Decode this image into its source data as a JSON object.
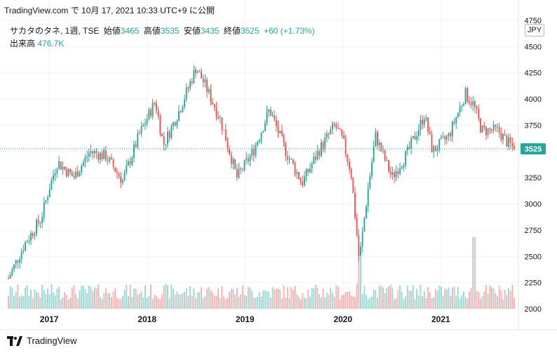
{
  "header": {
    "caption": "TradingView.com で 10月 17, 2021 10:33 UTC+9 に公開"
  },
  "legend": {
    "symbol": "サカタのタネ, 1週, TSE",
    "open_label": "始値",
    "open": "3465",
    "high_label": "高値",
    "high": "3535",
    "low_label": "安値",
    "low": "3435",
    "close_label": "終値",
    "close": "3525",
    "change": "+60 (+1.73%)",
    "volume_label": "出来高",
    "volume": "476.7K"
  },
  "currency": "JPY",
  "footer": {
    "brand": "TradingView"
  },
  "colors": {
    "up": "#26a69a",
    "down": "#ef5350",
    "grid": "#f0f3fa",
    "last_line": "#26a69a"
  },
  "chart_data": {
    "type": "candlestick",
    "interval": "1 week",
    "ylim": [
      1950,
      4750
    ],
    "y_ticks": [
      2000,
      2250,
      2500,
      2750,
      3000,
      3250,
      3500,
      3750,
      4000,
      4250,
      4500,
      4750
    ],
    "x_ticks": [
      "2017",
      "2018",
      "2019",
      "2020",
      "2021"
    ],
    "last_price": "3525",
    "grid": true,
    "anchors": [
      [
        "2016-08",
        2290
      ],
      [
        "2016-10",
        2620
      ],
      [
        "2016-12",
        2860
      ],
      [
        "2017-01",
        3150
      ],
      [
        "2017-02",
        3400
      ],
      [
        "2017-04",
        3250
      ],
      [
        "2017-06",
        3500
      ],
      [
        "2017-08",
        3450
      ],
      [
        "2017-10",
        3220
      ],
      [
        "2017-12",
        3650
      ],
      [
        "2018-02",
        3980
      ],
      [
        "2018-03",
        3560
      ],
      [
        "2018-05",
        3900
      ],
      [
        "2018-07",
        4300
      ],
      [
        "2018-08",
        4150
      ],
      [
        "2018-10",
        3800
      ],
      [
        "2018-12",
        3250
      ],
      [
        "2019-02",
        3500
      ],
      [
        "2019-04",
        3900
      ],
      [
        "2019-06",
        3500
      ],
      [
        "2019-08",
        3200
      ],
      [
        "2019-10",
        3500
      ],
      [
        "2019-12",
        3750
      ],
      [
        "2020-01",
        3600
      ],
      [
        "2020-02",
        3300
      ],
      [
        "2020-03",
        2460
      ],
      [
        "2020-04",
        3100
      ],
      [
        "2020-05",
        3650
      ],
      [
        "2020-06",
        3450
      ],
      [
        "2020-07",
        3250
      ],
      [
        "2020-09",
        3500
      ],
      [
        "2020-11",
        3850
      ],
      [
        "2020-12",
        3500
      ],
      [
        "2021-02",
        3650
      ],
      [
        "2021-04",
        4050
      ],
      [
        "2021-05",
        3950
      ],
      [
        "2021-06",
        3700
      ],
      [
        "2021-08",
        3700
      ],
      [
        "2021-09",
        3600
      ],
      [
        "2021-10",
        3525
      ]
    ],
    "volume_spikes": [
      [
        "2020-03",
        80000
      ],
      [
        "2021-05",
        93000
      ]
    ]
  }
}
